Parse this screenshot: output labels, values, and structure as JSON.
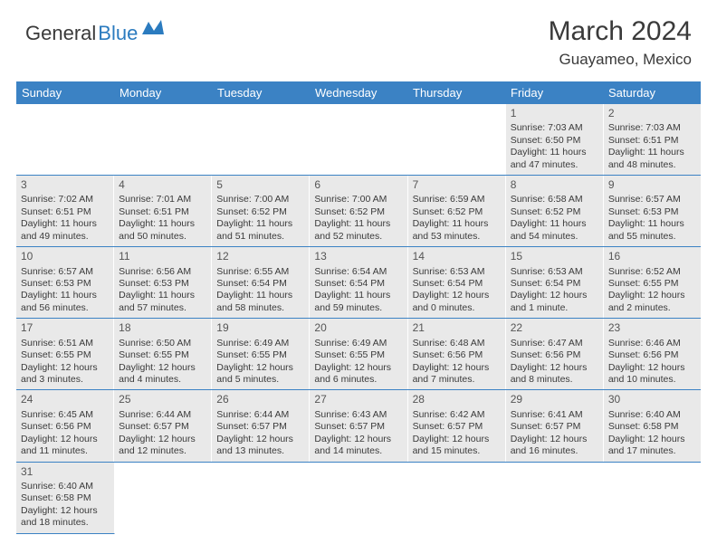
{
  "logo": {
    "text_dark": "General",
    "text_blue": "Blue",
    "icon_color": "#2b7bbf"
  },
  "header": {
    "month_title": "March 2024",
    "location": "Guayameo, Mexico"
  },
  "colors": {
    "header_bg": "#3b82c4",
    "header_text": "#ffffff",
    "cell_bg": "#e9e9e9",
    "text": "#3a3a3a",
    "divider": "#3b82c4"
  },
  "day_names": [
    "Sunday",
    "Monday",
    "Tuesday",
    "Wednesday",
    "Thursday",
    "Friday",
    "Saturday"
  ],
  "weeks": [
    [
      null,
      null,
      null,
      null,
      null,
      {
        "n": "1",
        "sr": "Sunrise: 7:03 AM",
        "ss": "Sunset: 6:50 PM",
        "dl": "Daylight: 11 hours and 47 minutes."
      },
      {
        "n": "2",
        "sr": "Sunrise: 7:03 AM",
        "ss": "Sunset: 6:51 PM",
        "dl": "Daylight: 11 hours and 48 minutes."
      }
    ],
    [
      {
        "n": "3",
        "sr": "Sunrise: 7:02 AM",
        "ss": "Sunset: 6:51 PM",
        "dl": "Daylight: 11 hours and 49 minutes."
      },
      {
        "n": "4",
        "sr": "Sunrise: 7:01 AM",
        "ss": "Sunset: 6:51 PM",
        "dl": "Daylight: 11 hours and 50 minutes."
      },
      {
        "n": "5",
        "sr": "Sunrise: 7:00 AM",
        "ss": "Sunset: 6:52 PM",
        "dl": "Daylight: 11 hours and 51 minutes."
      },
      {
        "n": "6",
        "sr": "Sunrise: 7:00 AM",
        "ss": "Sunset: 6:52 PM",
        "dl": "Daylight: 11 hours and 52 minutes."
      },
      {
        "n": "7",
        "sr": "Sunrise: 6:59 AM",
        "ss": "Sunset: 6:52 PM",
        "dl": "Daylight: 11 hours and 53 minutes."
      },
      {
        "n": "8",
        "sr": "Sunrise: 6:58 AM",
        "ss": "Sunset: 6:52 PM",
        "dl": "Daylight: 11 hours and 54 minutes."
      },
      {
        "n": "9",
        "sr": "Sunrise: 6:57 AM",
        "ss": "Sunset: 6:53 PM",
        "dl": "Daylight: 11 hours and 55 minutes."
      }
    ],
    [
      {
        "n": "10",
        "sr": "Sunrise: 6:57 AM",
        "ss": "Sunset: 6:53 PM",
        "dl": "Daylight: 11 hours and 56 minutes."
      },
      {
        "n": "11",
        "sr": "Sunrise: 6:56 AM",
        "ss": "Sunset: 6:53 PM",
        "dl": "Daylight: 11 hours and 57 minutes."
      },
      {
        "n": "12",
        "sr": "Sunrise: 6:55 AM",
        "ss": "Sunset: 6:54 PM",
        "dl": "Daylight: 11 hours and 58 minutes."
      },
      {
        "n": "13",
        "sr": "Sunrise: 6:54 AM",
        "ss": "Sunset: 6:54 PM",
        "dl": "Daylight: 11 hours and 59 minutes."
      },
      {
        "n": "14",
        "sr": "Sunrise: 6:53 AM",
        "ss": "Sunset: 6:54 PM",
        "dl": "Daylight: 12 hours and 0 minutes."
      },
      {
        "n": "15",
        "sr": "Sunrise: 6:53 AM",
        "ss": "Sunset: 6:54 PM",
        "dl": "Daylight: 12 hours and 1 minute."
      },
      {
        "n": "16",
        "sr": "Sunrise: 6:52 AM",
        "ss": "Sunset: 6:55 PM",
        "dl": "Daylight: 12 hours and 2 minutes."
      }
    ],
    [
      {
        "n": "17",
        "sr": "Sunrise: 6:51 AM",
        "ss": "Sunset: 6:55 PM",
        "dl": "Daylight: 12 hours and 3 minutes."
      },
      {
        "n": "18",
        "sr": "Sunrise: 6:50 AM",
        "ss": "Sunset: 6:55 PM",
        "dl": "Daylight: 12 hours and 4 minutes."
      },
      {
        "n": "19",
        "sr": "Sunrise: 6:49 AM",
        "ss": "Sunset: 6:55 PM",
        "dl": "Daylight: 12 hours and 5 minutes."
      },
      {
        "n": "20",
        "sr": "Sunrise: 6:49 AM",
        "ss": "Sunset: 6:55 PM",
        "dl": "Daylight: 12 hours and 6 minutes."
      },
      {
        "n": "21",
        "sr": "Sunrise: 6:48 AM",
        "ss": "Sunset: 6:56 PM",
        "dl": "Daylight: 12 hours and 7 minutes."
      },
      {
        "n": "22",
        "sr": "Sunrise: 6:47 AM",
        "ss": "Sunset: 6:56 PM",
        "dl": "Daylight: 12 hours and 8 minutes."
      },
      {
        "n": "23",
        "sr": "Sunrise: 6:46 AM",
        "ss": "Sunset: 6:56 PM",
        "dl": "Daylight: 12 hours and 10 minutes."
      }
    ],
    [
      {
        "n": "24",
        "sr": "Sunrise: 6:45 AM",
        "ss": "Sunset: 6:56 PM",
        "dl": "Daylight: 12 hours and 11 minutes."
      },
      {
        "n": "25",
        "sr": "Sunrise: 6:44 AM",
        "ss": "Sunset: 6:57 PM",
        "dl": "Daylight: 12 hours and 12 minutes."
      },
      {
        "n": "26",
        "sr": "Sunrise: 6:44 AM",
        "ss": "Sunset: 6:57 PM",
        "dl": "Daylight: 12 hours and 13 minutes."
      },
      {
        "n": "27",
        "sr": "Sunrise: 6:43 AM",
        "ss": "Sunset: 6:57 PM",
        "dl": "Daylight: 12 hours and 14 minutes."
      },
      {
        "n": "28",
        "sr": "Sunrise: 6:42 AM",
        "ss": "Sunset: 6:57 PM",
        "dl": "Daylight: 12 hours and 15 minutes."
      },
      {
        "n": "29",
        "sr": "Sunrise: 6:41 AM",
        "ss": "Sunset: 6:57 PM",
        "dl": "Daylight: 12 hours and 16 minutes."
      },
      {
        "n": "30",
        "sr": "Sunrise: 6:40 AM",
        "ss": "Sunset: 6:58 PM",
        "dl": "Daylight: 12 hours and 17 minutes."
      }
    ],
    [
      {
        "n": "31",
        "sr": "Sunrise: 6:40 AM",
        "ss": "Sunset: 6:58 PM",
        "dl": "Daylight: 12 hours and 18 minutes."
      },
      null,
      null,
      null,
      null,
      null,
      null
    ]
  ]
}
